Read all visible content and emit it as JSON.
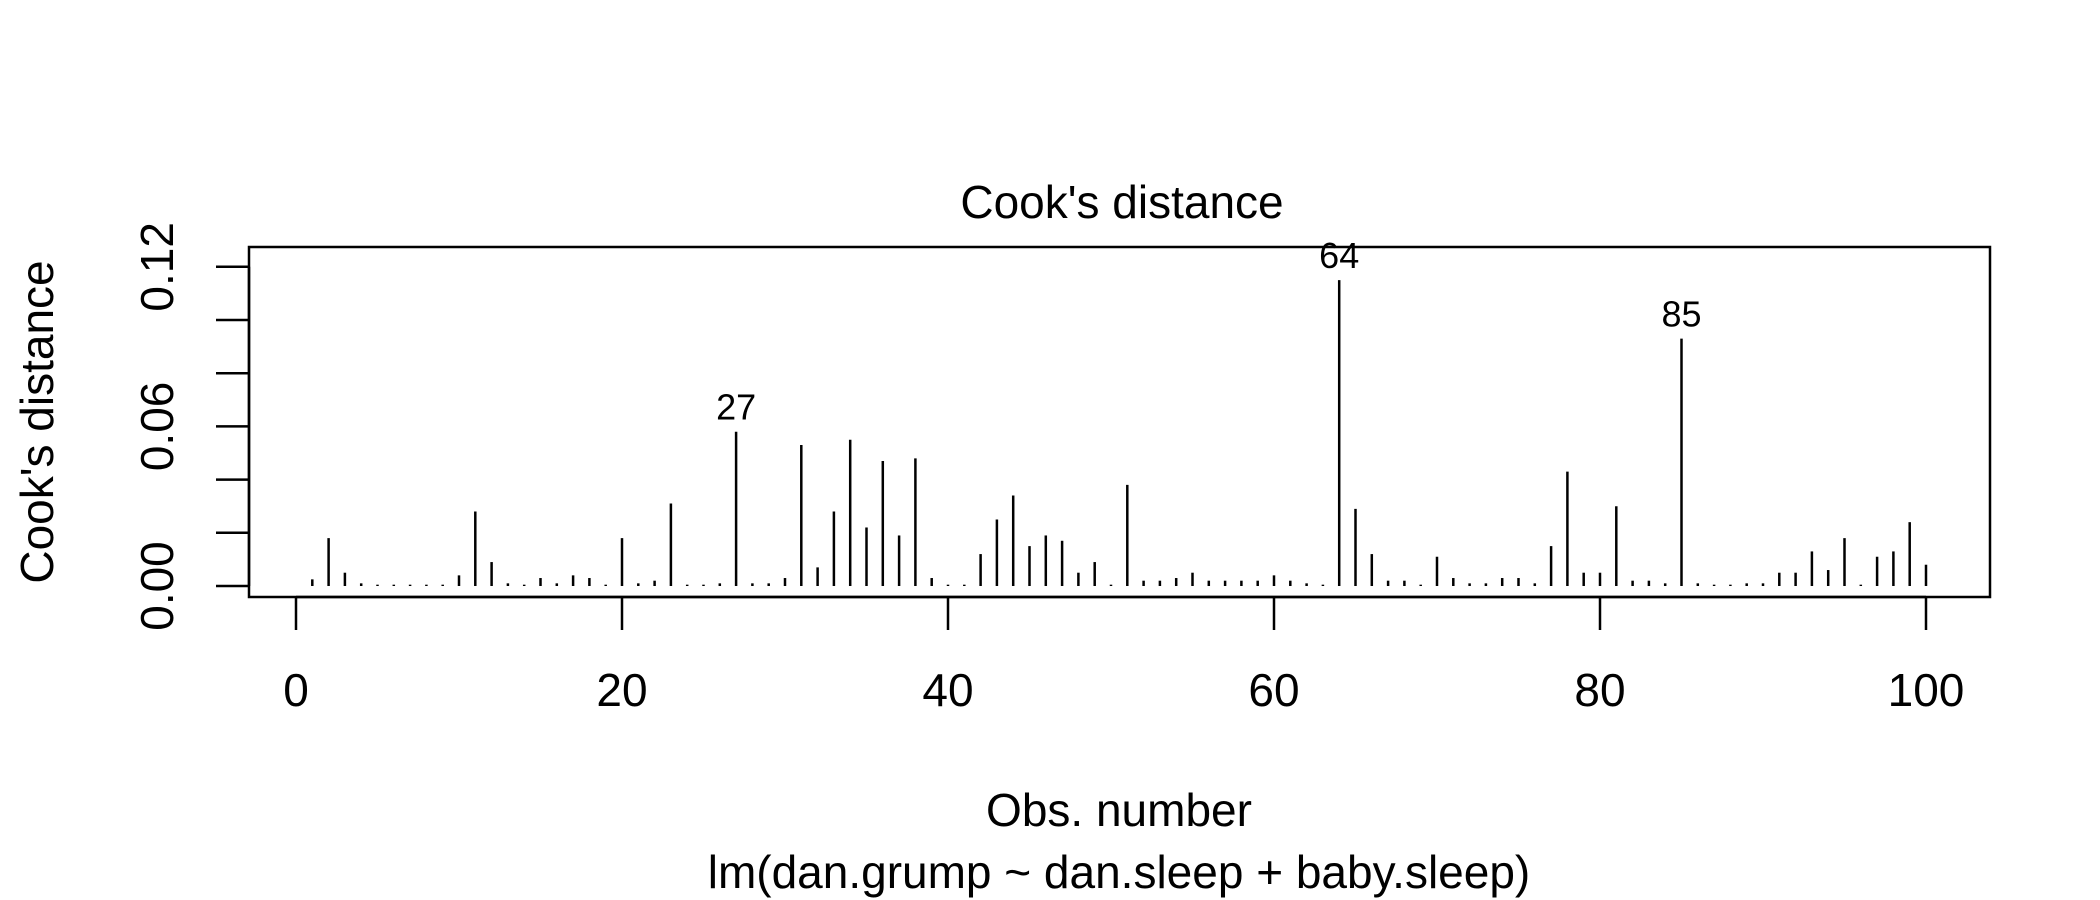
{
  "chart_data": {
    "type": "bar",
    "title": "Cook's distance",
    "xlabel": "Obs. number",
    "subtitle": "lm(dan.grump ~ dan.sleep + baby.sleep)",
    "ylabel": "Cook's distance",
    "xlim": [
      0,
      100
    ],
    "ylim": [
      0,
      0.12
    ],
    "x_ticks": [
      0,
      20,
      40,
      60,
      80,
      100
    ],
    "y_ticks": [
      0,
      0.02,
      0.04,
      0.06,
      0.08,
      0.1,
      0.12
    ],
    "y_tick_labels": [
      "0.00",
      "0.06",
      "0.12"
    ],
    "grid": false,
    "x": [
      1,
      2,
      3,
      4,
      5,
      6,
      7,
      8,
      9,
      10,
      11,
      12,
      13,
      14,
      15,
      16,
      17,
      18,
      19,
      20,
      21,
      22,
      23,
      24,
      25,
      26,
      27,
      28,
      29,
      30,
      31,
      32,
      33,
      34,
      35,
      36,
      37,
      38,
      39,
      40,
      41,
      42,
      43,
      44,
      45,
      46,
      47,
      48,
      49,
      50,
      51,
      52,
      53,
      54,
      55,
      56,
      57,
      58,
      59,
      60,
      61,
      62,
      63,
      64,
      65,
      66,
      67,
      68,
      69,
      70,
      71,
      72,
      73,
      74,
      75,
      76,
      77,
      78,
      79,
      80,
      81,
      82,
      83,
      84,
      85,
      86,
      87,
      88,
      89,
      90,
      91,
      92,
      93,
      94,
      95,
      96,
      97,
      98,
      99,
      100
    ],
    "values": [
      0.0025,
      0.018,
      0.005,
      0.001,
      0.0005,
      0.0005,
      0.0005,
      0.0005,
      0.0005,
      0.004,
      0.028,
      0.009,
      0.001,
      0.0005,
      0.003,
      0.001,
      0.004,
      0.003,
      0.0005,
      0.018,
      0.001,
      0.002,
      0.031,
      0.0005,
      0.0005,
      0.001,
      0.058,
      0.001,
      0.001,
      0.003,
      0.053,
      0.007,
      0.028,
      0.055,
      0.022,
      0.047,
      0.019,
      0.048,
      0.003,
      0.0005,
      0.0005,
      0.012,
      0.025,
      0.034,
      0.015,
      0.019,
      0.017,
      0.005,
      0.009,
      0.0005,
      0.038,
      0.002,
      0.002,
      0.003,
      0.005,
      0.002,
      0.002,
      0.002,
      0.002,
      0.004,
      0.002,
      0.001,
      0.0005,
      0.115,
      0.029,
      0.012,
      0.002,
      0.002,
      0.0005,
      0.011,
      0.003,
      0.001,
      0.001,
      0.003,
      0.003,
      0.001,
      0.015,
      0.043,
      0.005,
      0.005,
      0.03,
      0.002,
      0.002,
      0.001,
      0.093,
      0.001,
      0.0005,
      0.0005,
      0.001,
      0.001,
      0.005,
      0.005,
      0.013,
      0.006,
      0.018,
      0.0005,
      0.011,
      0.013,
      0.024,
      0.008
    ],
    "annotations": [
      {
        "obs": 27,
        "label": "27"
      },
      {
        "obs": 64,
        "label": "64"
      },
      {
        "obs": 85,
        "label": "85"
      }
    ]
  }
}
